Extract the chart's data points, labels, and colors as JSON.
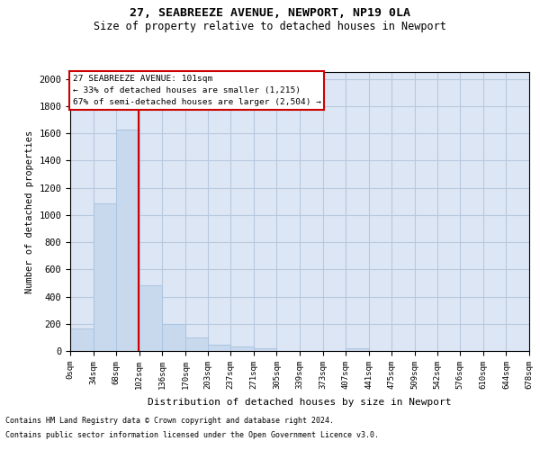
{
  "title": "27, SEABREEZE AVENUE, NEWPORT, NP19 0LA",
  "subtitle": "Size of property relative to detached houses in Newport",
  "xlabel": "Distribution of detached houses by size in Newport",
  "ylabel": "Number of detached properties",
  "footnote1": "Contains HM Land Registry data © Crown copyright and database right 2024.",
  "footnote2": "Contains public sector information licensed under the Open Government Licence v3.0.",
  "annotation_title": "27 SEABREEZE AVENUE: 101sqm",
  "annotation_line2": "← 33% of detached houses are smaller (1,215)",
  "annotation_line3": "67% of semi-detached houses are larger (2,504) →",
  "bar_edge_color": "#aac4e0",
  "bar_face_color": "#c8d9ed",
  "vline_color": "#cc0000",
  "vline_x": 101,
  "annotation_box_color": "#cc0000",
  "annotation_box_fill": "#ffffff",
  "background_color": "#ffffff",
  "axes_bg_color": "#dce6f5",
  "grid_color": "#b8c8de",
  "bin_edges": [
    0,
    34,
    68,
    102,
    136,
    170,
    203,
    237,
    271,
    305,
    339,
    373,
    407,
    441,
    475,
    509,
    542,
    576,
    610,
    644,
    678
  ],
  "bar_heights": [
    165,
    1085,
    1625,
    480,
    200,
    100,
    45,
    30,
    20,
    0,
    0,
    0,
    20,
    0,
    0,
    0,
    0,
    0,
    0,
    0
  ],
  "ylim": [
    0,
    2050
  ],
  "yticks": [
    0,
    200,
    400,
    600,
    800,
    1000,
    1200,
    1400,
    1600,
    1800,
    2000
  ],
  "tick_labels": [
    "0sqm",
    "34sqm",
    "68sqm",
    "102sqm",
    "136sqm",
    "170sqm",
    "203sqm",
    "237sqm",
    "271sqm",
    "305sqm",
    "339sqm",
    "373sqm",
    "407sqm",
    "441sqm",
    "475sqm",
    "509sqm",
    "542sqm",
    "576sqm",
    "610sqm",
    "644sqm",
    "678sqm"
  ]
}
